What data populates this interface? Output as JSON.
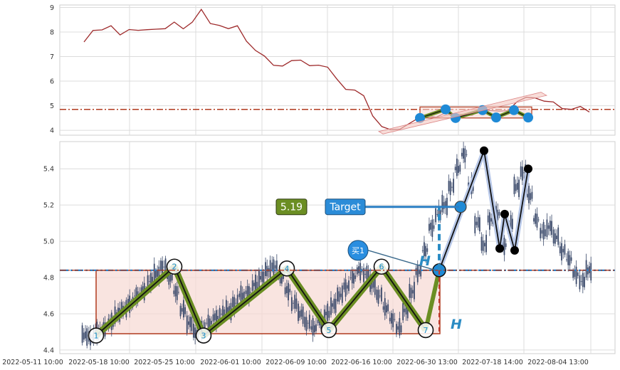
{
  "chart_data": [
    {
      "type": "line",
      "panel": "top",
      "ylim": [
        3.8,
        9.1
      ],
      "yticks": [
        "4",
        "5",
        "6",
        "7",
        "8",
        "9"
      ],
      "grid": true,
      "colors": {
        "line": "#9e2a2b",
        "hline": "#b03a1e",
        "pattern": "#6b8e23",
        "marker": "#1f8ad6"
      },
      "hline": 4.85,
      "series": [
        {
          "values": [
            7.7,
            8.1,
            8.05,
            8.15,
            7.95,
            8.1,
            8.0,
            8.2,
            8.15,
            8.1,
            8.3,
            8.2,
            8.4,
            8.85,
            8.45,
            8.3,
            8.1,
            8.15,
            7.7,
            7.25,
            6.95,
            6.75,
            6.65,
            6.8,
            6.75,
            6.7,
            6.65,
            6.5,
            6.2,
            5.7,
            5.6,
            5.3,
            4.65,
            4.15,
            3.95,
            4.15,
            4.3,
            4.45,
            4.5,
            4.6,
            4.7,
            4.6,
            4.75,
            4.65,
            4.8,
            4.7,
            4.85,
            4.8,
            5.1,
            5.45,
            5.35,
            5.15,
            5.05,
            4.95,
            4.85,
            4.9,
            4.85
          ]
        }
      ]
    },
    {
      "type": "candlestick",
      "panel": "bottom",
      "ylim": [
        4.38,
        5.55
      ],
      "yticks": [
        "4.4",
        "4.6",
        "4.8",
        "5.0",
        "5.2",
        "5.4"
      ],
      "xticks": [
        "2022-05-11 10:00",
        "2022-05-18 10:00",
        "2022-05-25 10:00",
        "2022-06-01 10:00",
        "2022-06-09 10:00",
        "2022-06-16 10:00",
        "2022-06-30 13:00",
        "2022-07-18 14:00",
        "2022-08-04 13:00"
      ],
      "grid": true,
      "colors": {
        "candle": "#3b4a6b",
        "zigzag": "#6b8e23",
        "zone_fill": "#f6d9d3",
        "zone_edge": "#b03a1e",
        "hline": "#b03a1e",
        "target_line": "#2b7fc4",
        "wave": "#111111"
      },
      "candles": [
        4.48,
        4.47,
        4.5,
        4.52,
        4.55,
        4.6,
        4.62,
        4.66,
        4.7,
        4.73,
        4.78,
        4.82,
        4.86,
        4.8,
        4.72,
        4.62,
        4.55,
        4.5,
        4.52,
        4.55,
        4.58,
        4.6,
        4.62,
        4.66,
        4.7,
        4.72,
        4.76,
        4.8,
        4.84,
        4.86,
        4.8,
        4.73,
        4.66,
        4.6,
        4.55,
        4.52,
        4.56,
        4.6,
        4.65,
        4.7,
        4.75,
        4.8,
        4.84,
        4.82,
        4.76,
        4.7,
        4.63,
        4.57,
        4.52,
        4.62,
        4.72,
        4.83,
        4.95,
        5.08,
        5.15,
        5.2,
        5.3,
        5.4,
        5.48,
        5.3,
        5.1,
        4.98,
        5.12,
        5.15,
        4.98,
        5.1,
        5.3,
        5.38,
        5.25,
        5.12,
        5.05,
        5.08,
        5.02,
        4.95,
        4.9,
        4.82,
        4.78,
        4.84
      ],
      "zone": {
        "low": 4.49,
        "high": 4.84
      },
      "hline": 4.84,
      "zigzag_points": [
        {
          "label": "1",
          "value": 4.48
        },
        {
          "label": "2",
          "value": 4.86
        },
        {
          "label": "3",
          "value": 4.48
        },
        {
          "label": "4",
          "value": 4.85
        },
        {
          "label": "5",
          "value": 4.51
        },
        {
          "label": "6",
          "value": 4.86
        },
        {
          "label": "7",
          "value": 4.51
        }
      ],
      "wave_points": [
        4.84,
        5.5,
        4.96,
        5.15,
        4.95,
        5.4
      ],
      "target": {
        "label": "Target",
        "value": "5.19"
      },
      "buy_marker": "买1",
      "h_marker": "H"
    }
  ]
}
